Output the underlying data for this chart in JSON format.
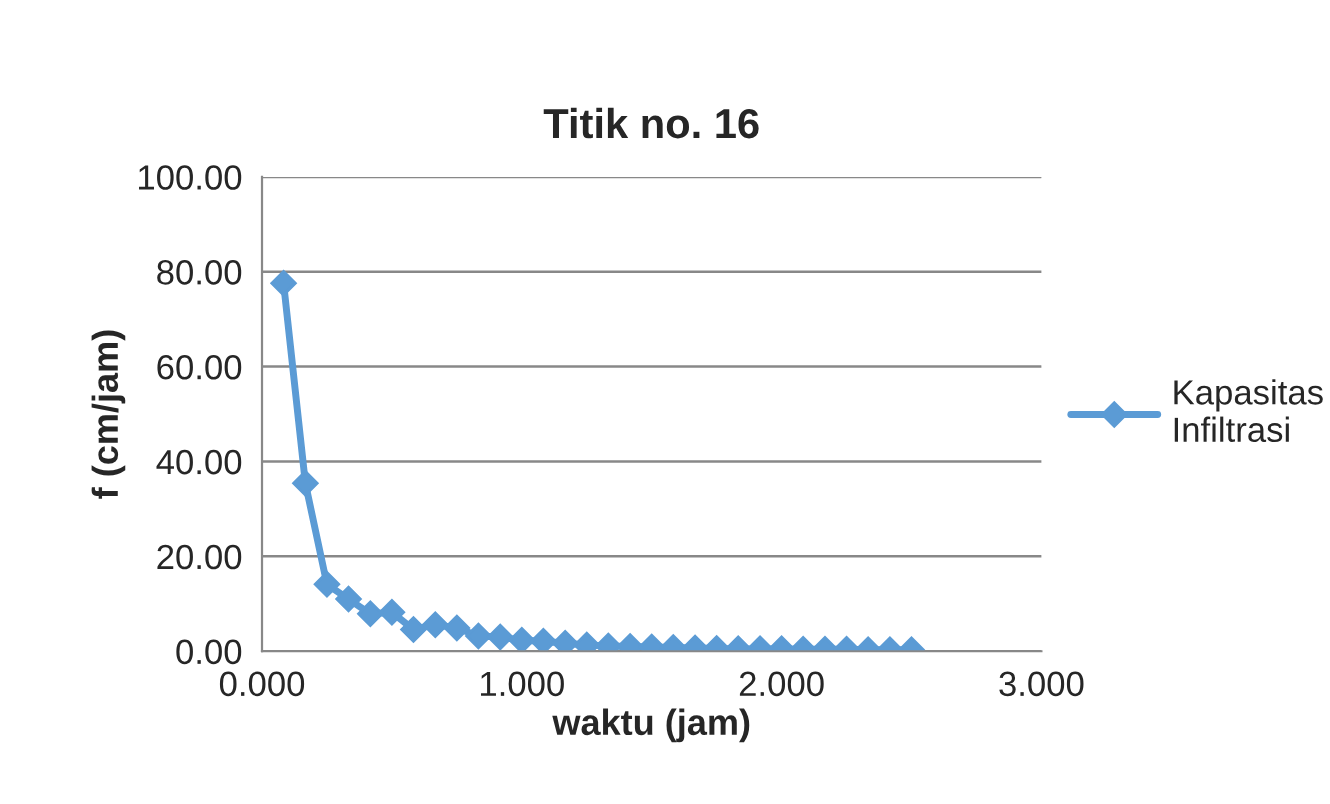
{
  "chart_data": {
    "type": "line",
    "title": "Titik no. 16",
    "xlabel": "waktu (jam)",
    "ylabel": "f (cm/jam)",
    "x": [
      0.083,
      0.167,
      0.25,
      0.333,
      0.417,
      0.5,
      0.583,
      0.667,
      0.75,
      0.833,
      0.917,
      1.0,
      1.083,
      1.167,
      1.25,
      1.333,
      1.417,
      1.5,
      1.583,
      1.667,
      1.75,
      1.833,
      1.917,
      2.0,
      2.083,
      2.167,
      2.25,
      2.333,
      2.417,
      2.5
    ],
    "series": [
      {
        "name": "Kapasitas Infiltrasi",
        "color": "#5b9bd5",
        "values": [
          77.6,
          35.4,
          14.1,
          11.0,
          7.9,
          8.2,
          4.6,
          5.6,
          4.9,
          3.2,
          3.0,
          2.3,
          2.1,
          1.7,
          1.3,
          1.1,
          1.0,
          0.9,
          0.8,
          0.7,
          0.6,
          0.5,
          0.5,
          0.5,
          0.4,
          0.4,
          0.4,
          0.3,
          0.3,
          0.3
        ]
      }
    ],
    "xlim": [
      0,
      3
    ],
    "xticks": [
      {
        "value": 0,
        "label": "0.000"
      },
      {
        "value": 1,
        "label": "1.000"
      },
      {
        "value": 2,
        "label": "2.000"
      },
      {
        "value": 3,
        "label": "3.000"
      }
    ],
    "ylim": [
      0,
      100
    ],
    "yticks": [
      {
        "value": 0,
        "label": "0.00"
      },
      {
        "value": 20,
        "label": "20.00"
      },
      {
        "value": 40,
        "label": "40.00"
      },
      {
        "value": 60,
        "label": "60.00"
      },
      {
        "value": 80,
        "label": "80.00"
      },
      {
        "value": 100,
        "label": "100.00"
      }
    ],
    "grid": "y",
    "legend": "right",
    "marker": "diamond",
    "line_style": "solid"
  }
}
